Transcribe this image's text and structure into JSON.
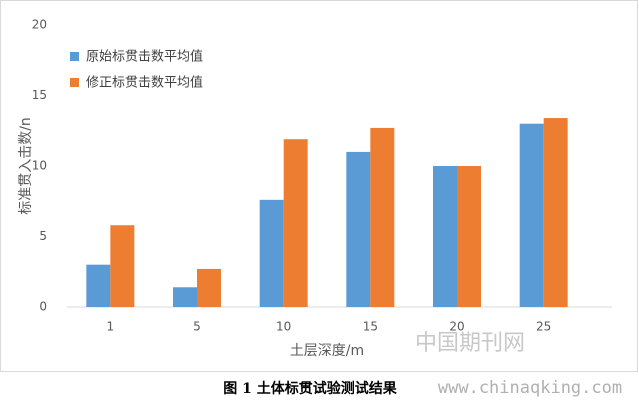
{
  "chart_data": {
    "type": "bar",
    "caption": "图 1  土体标贯试验测试结果",
    "x_label": "土层深度/m",
    "y_label": "标准贯入击数/n",
    "watermark": "中国期刊网",
    "watermark_url": "www.chinaqking.com",
    "categories": [
      "1",
      "5",
      "10",
      "15",
      "20",
      "25"
    ],
    "series": [
      {
        "name": "原始标贯击数平均值",
        "color": "#5b9bd5",
        "values": [
          3,
          1.4,
          7.6,
          11,
          10,
          13
        ]
      },
      {
        "name": "修正标贯击数平均值",
        "color": "#ed7d31",
        "values": [
          5.8,
          2.7,
          11.9,
          12.7,
          10,
          13.4
        ]
      }
    ],
    "ylim": [
      0,
      20
    ],
    "yticks": [
      0,
      5,
      10,
      15,
      20
    ],
    "grid": false
  }
}
